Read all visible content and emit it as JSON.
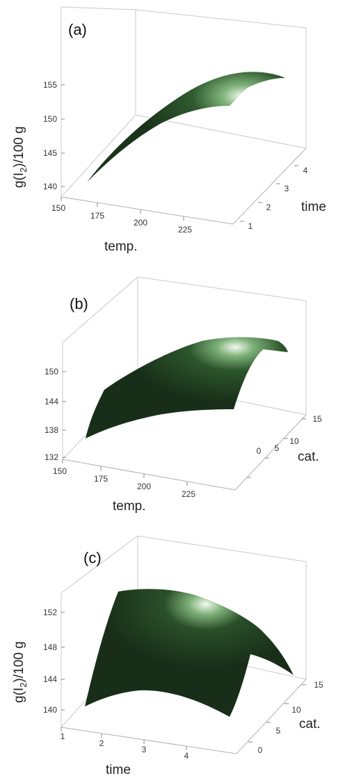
{
  "chart_data": [
    {
      "type": "surface",
      "panel_label": "(a)",
      "xlabel": "temp.",
      "ylabel": "time",
      "zlabel": "g(I2)/100 g",
      "xticks": [
        "150",
        "175",
        "200",
        "225"
      ],
      "yticks": [
        "1",
        "2",
        "3",
        "4"
      ],
      "zticks": [
        "140",
        "145",
        "150",
        "155"
      ],
      "xlim": [
        150,
        250
      ],
      "ylim": [
        0.5,
        4.5
      ],
      "zlim": [
        138,
        157
      ],
      "curve_points": [
        {
          "x": 160,
          "y": 1,
          "z": 140.2
        },
        {
          "x": 175,
          "y": 1.5,
          "z": 145.5
        },
        {
          "x": 190,
          "y": 2.2,
          "z": 149.5
        },
        {
          "x": 205,
          "y": 2.8,
          "z": 152.5
        },
        {
          "x": 220,
          "y": 3.4,
          "z": 154.3
        },
        {
          "x": 235,
          "y": 4.0,
          "z": 155.0
        },
        {
          "x": 245,
          "y": 4.3,
          "z": 154.4
        }
      ],
      "color": "#1e3d1e",
      "highlight": "#e8f4e6"
    },
    {
      "type": "surface",
      "panel_label": "(b)",
      "xlabel": "temp.",
      "ylabel": "cat.",
      "zlabel": "",
      "xticks": [
        "150",
        "175",
        "200",
        "225"
      ],
      "yticks": [
        "0",
        "5",
        "10",
        "15"
      ],
      "zticks": [
        "132",
        "138",
        "144",
        "150"
      ],
      "xlim": [
        150,
        250
      ],
      "ylim": [
        0,
        15
      ],
      "zlim": [
        130,
        157
      ],
      "color": "#1e3d1e",
      "highlight": "#e8f4e6"
    },
    {
      "type": "surface",
      "panel_label": "(c)",
      "xlabel": "time",
      "ylabel": "cat.",
      "zlabel": "g(I2)/100 g",
      "xticks": [
        "1",
        "2",
        "3",
        "4"
      ],
      "yticks": [
        "0",
        "5",
        "10",
        "15"
      ],
      "zticks": [
        "140",
        "144",
        "148",
        "152"
      ],
      "xlim": [
        1,
        5
      ],
      "ylim": [
        0,
        15
      ],
      "zlim": [
        138,
        156
      ],
      "color": "#1e3d1e",
      "highlight": "#e8f4e6"
    }
  ]
}
